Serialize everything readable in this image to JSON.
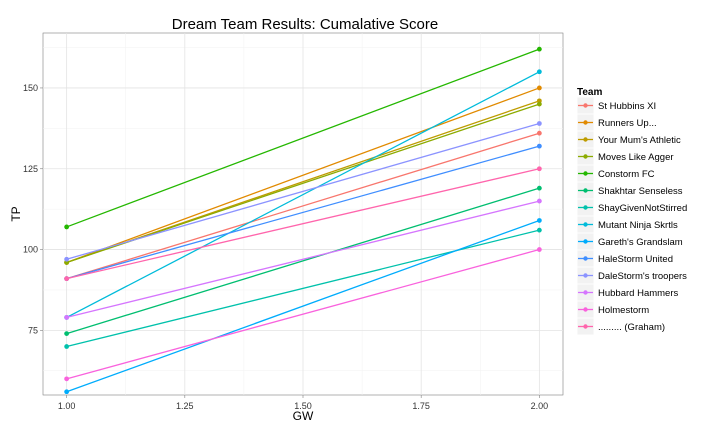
{
  "chart_data": {
    "type": "line",
    "title": "Dream Team Results: Cumalative Score",
    "xlabel": "GW",
    "ylabel": "TP",
    "xlim": [
      0.95,
      2.05
    ],
    "ylim": [
      55,
      167
    ],
    "x_ticks": [
      "1.00",
      "1.25",
      "1.50",
      "1.75",
      "2.00"
    ],
    "x_tick_values": [
      1.0,
      1.25,
      1.5,
      1.75,
      2.0
    ],
    "y_ticks": [
      "75",
      "100",
      "125",
      "150"
    ],
    "y_tick_values": [
      75,
      100,
      125,
      150
    ],
    "grid": true,
    "legend": {
      "title": "Team",
      "position": "right"
    },
    "x": [
      1,
      2
    ],
    "series": [
      {
        "name": "St Hubbins XI",
        "color": "#F8766D",
        "values": [
          91,
          136
        ]
      },
      {
        "name": "Runners Up...",
        "color": "#E18A00",
        "values": [
          96,
          150
        ]
      },
      {
        "name": "Your Mum's Athletic",
        "color": "#BE9C00",
        "values": [
          96,
          146
        ]
      },
      {
        "name": "Moves Like Agger",
        "color": "#8CAB00",
        "values": [
          96,
          145
        ]
      },
      {
        "name": "Constorm FC",
        "color": "#24B700",
        "values": [
          107,
          162
        ]
      },
      {
        "name": "Shakhtar Senseless",
        "color": "#00BE70",
        "values": [
          74,
          119
        ]
      },
      {
        "name": "ShayGivenNotStirred",
        "color": "#00C1AB",
        "values": [
          70,
          106
        ]
      },
      {
        "name": "Mutant Ninja Skrtls",
        "color": "#00BBDA",
        "values": [
          79,
          155
        ]
      },
      {
        "name": "Gareth's Grandslam",
        "color": "#00ACFC",
        "values": [
          56,
          109
        ]
      },
      {
        "name": "HaleStorm United",
        "color": "#3F8EFF",
        "values": [
          91,
          132
        ]
      },
      {
        "name": "DaleStorm's troopers",
        "color": "#8B93FF",
        "values": [
          97,
          139
        ]
      },
      {
        "name": "Hubbard Hammers",
        "color": "#D575FE",
        "values": [
          79,
          115
        ]
      },
      {
        "name": "Holmestorm",
        "color": "#F962DD",
        "values": [
          60,
          100
        ]
      },
      {
        "name": "......... (Graham)",
        "color": "#FF65AC",
        "values": [
          91,
          125
        ]
      }
    ]
  }
}
